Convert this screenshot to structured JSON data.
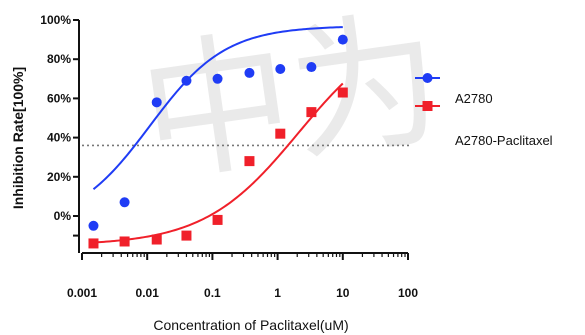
{
  "chart_data": {
    "type": "scatter",
    "xlabel": "Concentration of Paclitaxel(uM)",
    "ylabel": "Inhibition Rate[100%]",
    "x_scale": "log",
    "xlim": [
      0.001,
      100
    ],
    "ylim": [
      -0.15,
      1.0
    ],
    "x_ticks": [
      {
        "value": 0.001,
        "label": "0.001"
      },
      {
        "value": 0.01,
        "label": "0.01"
      },
      {
        "value": 0.1,
        "label": "0.1"
      },
      {
        "value": 1,
        "label": "1"
      },
      {
        "value": 10,
        "label": "10"
      },
      {
        "value": 100,
        "label": "100"
      }
    ],
    "y_ticks": [
      {
        "value": 0.0,
        "label": "0%"
      },
      {
        "value": 0.2,
        "label": "20%"
      },
      {
        "value": 0.4,
        "label": "40%"
      },
      {
        "value": 0.6,
        "label": "60%"
      },
      {
        "value": 0.8,
        "label": "80%"
      },
      {
        "value": 1.0,
        "label": "100%"
      }
    ],
    "reference_line": {
      "y": 0.36,
      "style": "dotted",
      "color": "#777777"
    },
    "legend_position": "right",
    "series": [
      {
        "name": "A2780",
        "color": "#1f3cf5",
        "marker": "circle",
        "x": [
          0.0015,
          0.0045,
          0.014,
          0.04,
          0.12,
          0.37,
          1.1,
          3.3,
          10
        ],
        "y": [
          -0.05,
          0.07,
          0.58,
          0.69,
          0.7,
          0.73,
          0.75,
          0.76,
          0.9
        ],
        "fit": {
          "bottom": -0.05,
          "top": 0.97,
          "ec50": 0.011,
          "hill": 0.75
        }
      },
      {
        "name": "A2780-Paclitaxel",
        "color": "#f0202a",
        "marker": "square",
        "x": [
          0.0015,
          0.0045,
          0.014,
          0.04,
          0.12,
          0.37,
          1.1,
          3.3,
          10
        ],
        "y": [
          -0.14,
          -0.13,
          -0.12,
          -0.1,
          -0.02,
          0.28,
          0.42,
          0.53,
          0.63
        ],
        "fit": {
          "bottom": -0.15,
          "top": 1.0,
          "ec50": 2.1,
          "hill": 0.6
        }
      }
    ]
  },
  "watermark": {
    "text": "中为"
  }
}
